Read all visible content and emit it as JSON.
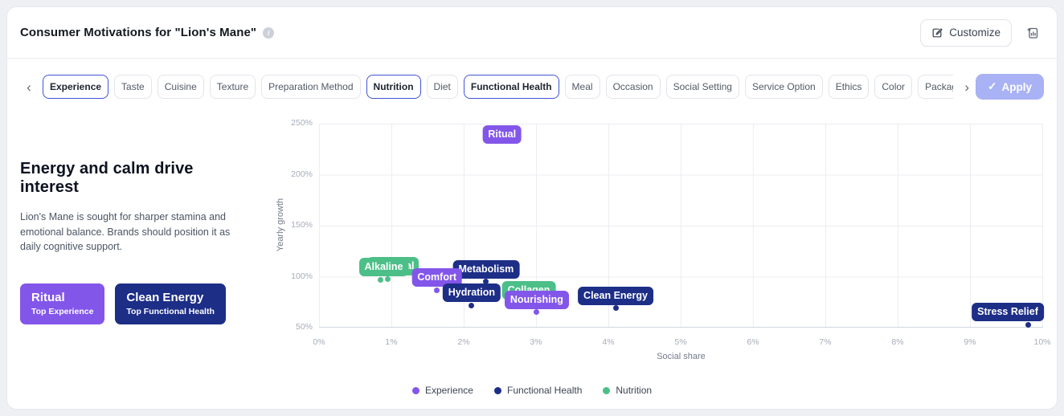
{
  "icons": {
    "info": "i",
    "check": "✓",
    "chevron_left": "‹",
    "chevron_right": "›"
  },
  "header": {
    "title": "Consumer Motivations for \"Lion's Mane\"",
    "customize_label": "Customize"
  },
  "filter_bar": {
    "apply_label": "Apply",
    "chips": [
      {
        "label": "Experience",
        "selected": true
      },
      {
        "label": "Taste",
        "selected": false
      },
      {
        "label": "Cuisine",
        "selected": false
      },
      {
        "label": "Texture",
        "selected": false
      },
      {
        "label": "Preparation Method",
        "selected": false
      },
      {
        "label": "Nutrition",
        "selected": true
      },
      {
        "label": "Diet",
        "selected": false
      },
      {
        "label": "Functional Health",
        "selected": true
      },
      {
        "label": "Meal",
        "selected": false
      },
      {
        "label": "Occasion",
        "selected": false
      },
      {
        "label": "Social Setting",
        "selected": false
      },
      {
        "label": "Service Option",
        "selected": false
      },
      {
        "label": "Ethics",
        "selected": false
      },
      {
        "label": "Color",
        "selected": false
      },
      {
        "label": "Packaging",
        "selected": false
      }
    ]
  },
  "insight": {
    "headline": "Energy and calm drive interest",
    "body": "Lion's Mane is sought for sharper stamina and emotional balance. Brands should position it as daily cognitive support.",
    "cards": [
      {
        "title": "Ritual",
        "subtitle": "Top Experience",
        "color": "#8356ea"
      },
      {
        "title": "Clean Energy",
        "subtitle": "Top Functional Health",
        "color": "#1d2e87"
      }
    ]
  },
  "chart_data": {
    "type": "scatter",
    "xlabel": "Social share",
    "ylabel": "Yearly growth",
    "xlim": [
      0,
      10
    ],
    "ylim": [
      50,
      250
    ],
    "x_ticks": [
      "0%",
      "1%",
      "2%",
      "3%",
      "4%",
      "5%",
      "6%",
      "7%",
      "8%",
      "9%",
      "10%"
    ],
    "y_ticks": [
      "250%",
      "200%",
      "150%",
      "100%",
      "50%"
    ],
    "grid": true,
    "legend_position": "bottom-center",
    "legend": [
      {
        "name": "Experience",
        "color": "#8356ea"
      },
      {
        "name": "Functional Health",
        "color": "#1d2e87"
      },
      {
        "name": "Nutrition",
        "color": "#4cbf88"
      }
    ],
    "series": [
      {
        "name": "Experience",
        "color": "#8356ea",
        "points": [
          {
            "label": "Ritual",
            "x": 2.53,
            "y": 240,
            "z": 3,
            "dy": 12,
            "dot_hidden_behind_label": true
          },
          {
            "label": "Comfort",
            "x": 1.63,
            "y": 87,
            "z": 5
          },
          {
            "label": "Nourishing",
            "x": 3.01,
            "y": 65,
            "z": 8
          }
        ]
      },
      {
        "name": "Functional Health",
        "color": "#1d2e87",
        "points": [
          {
            "label": "Metabolism",
            "x": 2.31,
            "y": 95,
            "z": 4
          },
          {
            "label": "Hydration",
            "x": 2.11,
            "y": 72,
            "z": 7
          },
          {
            "label": "Clean Energy",
            "x": 4.1,
            "y": 69,
            "z": 9
          },
          {
            "label": "Stress Relief",
            "x": 9.8,
            "y": 53,
            "z": 10,
            "dx": -25
          }
        ]
      },
      {
        "name": "Nutrition",
        "color": "#4cbf88",
        "points": [
          {
            "label": "al",
            "x": 0.95,
            "y": 98,
            "z": 1,
            "peek": true,
            "dx": -26,
            "partially_hidden": true
          },
          {
            "label": "Alkaline",
            "x": 0.85,
            "y": 97,
            "z": 2,
            "dx": 4
          },
          {
            "label": "Collagen",
            "x": 2.9,
            "y": 85,
            "z": 6,
            "dy": 9,
            "dot_hidden_behind_label": true
          }
        ]
      }
    ]
  }
}
